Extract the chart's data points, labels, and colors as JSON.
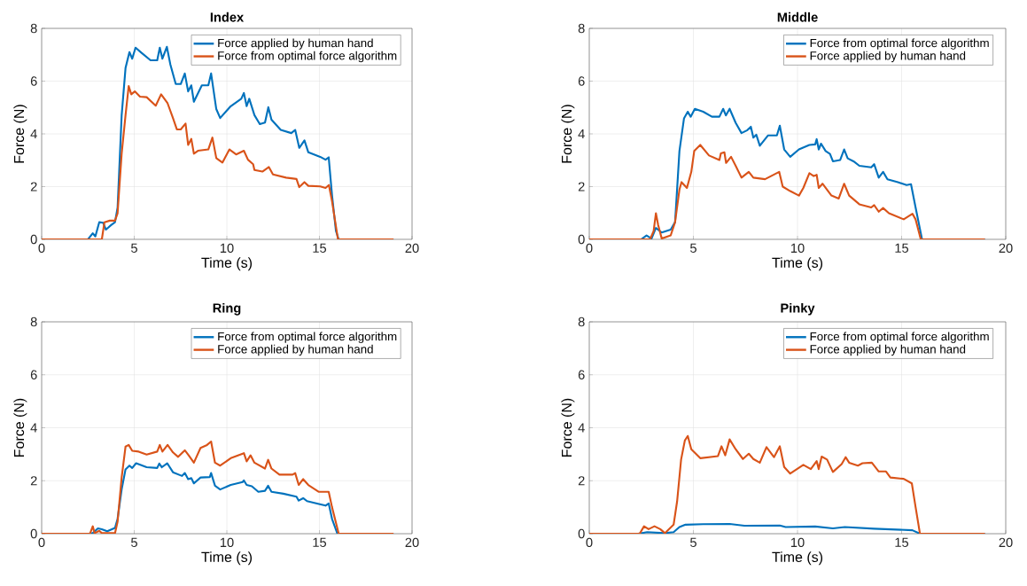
{
  "chart_data": [
    {
      "type": "line",
      "title": "Index",
      "xlabel": "Time (s)",
      "ylabel": "Force (N)",
      "xlim": [
        0,
        20
      ],
      "xticks": [
        0,
        5,
        10,
        15,
        20
      ],
      "ylim": [
        0,
        8
      ],
      "yticks": [
        0,
        2,
        4,
        6,
        8
      ],
      "grid": true,
      "legend": "top right",
      "series": [
        {
          "name": "Force applied by human hand",
          "color": "#0072bd",
          "x": [
            0,
            2.5,
            2.76,
            2.9,
            3.11,
            3.32,
            3.47,
            3.75,
            3.96,
            4.1,
            4.32,
            4.53,
            4.74,
            4.89,
            5.07,
            5.38,
            5.88,
            6.24,
            6.38,
            6.52,
            6.76,
            6.95,
            7.24,
            7.51,
            7.73,
            7.91,
            8.08,
            8.22,
            8.65,
            9.0,
            9.15,
            9.43,
            9.64,
            10.21,
            10.78,
            10.92,
            11.07,
            11.21,
            11.49,
            11.78,
            12.06,
            12.24,
            12.41,
            12.91,
            13.48,
            13.69,
            13.91,
            14.19,
            14.4,
            15.04,
            15.33,
            15.5,
            15.68,
            15.89,
            16.04,
            19
          ],
          "values": [
            0,
            0,
            0.23,
            0.11,
            0.65,
            0.63,
            0.37,
            0.54,
            0.65,
            1.2,
            4.7,
            6.5,
            7.1,
            6.85,
            7.27,
            7.08,
            6.79,
            6.79,
            7.27,
            6.85,
            7.3,
            6.63,
            5.89,
            5.89,
            6.29,
            5.61,
            5.84,
            5.22,
            5.84,
            5.84,
            6.29,
            4.94,
            4.6,
            5.05,
            5.33,
            5.55,
            5.05,
            5.33,
            4.71,
            4.37,
            4.43,
            5.01,
            4.54,
            4.15,
            4.03,
            4.15,
            3.47,
            3.75,
            3.3,
            3.13,
            3.02,
            3.11,
            1.67,
            0.32,
            0,
            0
          ]
        },
        {
          "name": "Force from optimal force algorithm",
          "color": "#d95319",
          "x": [
            0,
            3.25,
            3.39,
            3.68,
            3.96,
            4.1,
            4.32,
            4.53,
            4.7,
            4.84,
            5.03,
            5.31,
            5.67,
            6.16,
            6.45,
            6.8,
            7.09,
            7.3,
            7.51,
            7.77,
            7.91,
            8.08,
            8.22,
            8.44,
            9.0,
            9.22,
            9.43,
            9.76,
            10.14,
            10.5,
            10.92,
            11.14,
            11.42,
            11.49,
            11.92,
            12.27,
            12.49,
            13.2,
            13.76,
            13.91,
            14.19,
            14.4,
            15.04,
            15.33,
            15.51,
            15.68,
            16.0,
            19
          ],
          "values": [
            0,
            0,
            0.65,
            0.71,
            0.71,
            0.99,
            3.25,
            4.71,
            5.81,
            5.5,
            5.61,
            5.41,
            5.39,
            5.07,
            5.5,
            5.16,
            4.6,
            4.17,
            4.17,
            4.39,
            3.58,
            3.81,
            3.25,
            3.36,
            3.41,
            3.86,
            3.08,
            2.91,
            3.41,
            3.22,
            3.36,
            3.02,
            2.85,
            2.63,
            2.57,
            2.74,
            2.46,
            2.34,
            2.29,
            1.98,
            2.17,
            2.03,
            2.01,
            1.95,
            2.06,
            1.44,
            0,
            0
          ]
        }
      ]
    },
    {
      "type": "line",
      "title": "Middle",
      "xlabel": "Time (s)",
      "ylabel": "Force (N)",
      "xlim": [
        0,
        20
      ],
      "xticks": [
        0,
        5,
        10,
        15,
        20
      ],
      "ylim": [
        0,
        8
      ],
      "yticks": [
        0,
        2,
        4,
        6,
        8
      ],
      "grid": true,
      "legend": "top right",
      "series": [
        {
          "name": "Force from optimal force algorithm",
          "color": "#0072bd",
          "x": [
            0,
            2.49,
            2.75,
            2.99,
            3.2,
            3.48,
            3.91,
            4.12,
            4.33,
            4.55,
            4.73,
            4.87,
            5.07,
            5.47,
            5.89,
            6.25,
            6.43,
            6.56,
            6.74,
            7.03,
            7.31,
            7.59,
            7.76,
            7.88,
            8.02,
            8.19,
            8.58,
            9.01,
            9.15,
            9.36,
            9.65,
            10.07,
            10.57,
            10.85,
            10.92,
            11.02,
            11.13,
            11.35,
            11.56,
            11.7,
            12.05,
            12.24,
            12.41,
            12.69,
            12.97,
            13.54,
            13.68,
            13.9,
            14.11,
            14.32,
            14.82,
            15.24,
            15.45,
            15.67,
            15.98,
            19
          ],
          "values": [
            0,
            0,
            0.15,
            0.03,
            0.43,
            0.26,
            0.37,
            0.65,
            3.35,
            4.59,
            4.84,
            4.65,
            4.95,
            4.84,
            4.65,
            4.65,
            4.95,
            4.7,
            4.95,
            4.42,
            4.03,
            4.14,
            4.27,
            3.86,
            3.97,
            3.55,
            3.94,
            3.94,
            4.31,
            3.41,
            3.13,
            3.41,
            3.58,
            3.6,
            3.8,
            3.41,
            3.63,
            3.35,
            3.24,
            2.96,
            3.01,
            3.41,
            3.07,
            2.96,
            2.79,
            2.73,
            2.85,
            2.34,
            2.56,
            2.28,
            2.17,
            2.06,
            2.09,
            1.21,
            0,
            0
          ]
        },
        {
          "name": "Force applied by human hand",
          "color": "#d95319",
          "x": [
            0,
            2.92,
            3.09,
            3.2,
            3.31,
            3.48,
            3.91,
            4.12,
            4.33,
            4.43,
            4.69,
            4.9,
            5.04,
            5.33,
            5.75,
            6.25,
            6.32,
            6.49,
            6.57,
            6.81,
            7.03,
            7.31,
            7.66,
            7.88,
            8.44,
            9.12,
            9.29,
            9.65,
            10.07,
            10.28,
            10.57,
            10.78,
            10.92,
            11.02,
            11.2,
            11.63,
            11.98,
            12.24,
            12.48,
            12.97,
            13.54,
            13.68,
            13.9,
            14.11,
            14.39,
            15.1,
            15.52,
            15.67,
            15.92,
            19
          ],
          "values": [
            0,
            0,
            0.31,
            0.99,
            0.54,
            0.03,
            0.15,
            0.65,
            1.89,
            2.17,
            1.95,
            2.56,
            3.35,
            3.58,
            3.18,
            3.01,
            3.26,
            3.3,
            2.9,
            3.13,
            2.79,
            2.34,
            2.56,
            2.34,
            2.28,
            2.56,
            2.0,
            1.83,
            1.66,
            1.95,
            2.51,
            2.4,
            2.45,
            1.95,
            2.11,
            1.66,
            1.55,
            2.11,
            1.66,
            1.33,
            1.21,
            1.3,
            1.05,
            1.19,
            0.99,
            0.76,
            0.97,
            0.76,
            0,
            0
          ]
        }
      ]
    },
    {
      "type": "line",
      "title": "Ring",
      "xlabel": "Time (s)",
      "ylabel": "Force (N)",
      "xlim": [
        0,
        20
      ],
      "xticks": [
        0,
        5,
        10,
        15,
        20
      ],
      "ylim": [
        0,
        8
      ],
      "yticks": [
        0,
        2,
        4,
        6,
        8
      ],
      "grid": true,
      "legend": "top right",
      "series": [
        {
          "name": "Force from optimal force algorithm",
          "color": "#0072bd",
          "x": [
            0,
            2.54,
            2.76,
            3.04,
            3.25,
            3.54,
            3.96,
            4.1,
            4.32,
            4.53,
            4.74,
            4.89,
            5.1,
            5.67,
            6.24,
            6.35,
            6.49,
            6.78,
            7.09,
            7.58,
            7.73,
            7.91,
            8.08,
            8.22,
            8.58,
            9.08,
            9.15,
            9.36,
            9.64,
            10.21,
            10.85,
            10.92,
            11.07,
            11.35,
            11.7,
            12.06,
            12.23,
            12.41,
            13.05,
            13.76,
            13.88,
            14.12,
            14.33,
            14.97,
            15.33,
            15.5,
            15.68,
            15.97,
            19
          ],
          "values": [
            0,
            0,
            0.02,
            0.2,
            0.17,
            0.09,
            0.22,
            0.56,
            1.67,
            2.43,
            2.57,
            2.48,
            2.66,
            2.51,
            2.48,
            2.65,
            2.51,
            2.66,
            2.32,
            2.18,
            2.29,
            2.06,
            2.1,
            1.9,
            2.12,
            2.14,
            2.29,
            1.81,
            1.67,
            1.84,
            1.95,
            2.01,
            1.84,
            1.79,
            1.58,
            1.62,
            1.81,
            1.58,
            1.51,
            1.4,
            1.25,
            1.34,
            1.23,
            1.12,
            1.06,
            1.14,
            0.56,
            0,
            0
          ]
        },
        {
          "name": "Force applied by human hand",
          "color": "#d95319",
          "x": [
            0,
            2.61,
            2.76,
            2.86,
            3.11,
            3.25,
            3.96,
            4.1,
            4.32,
            4.53,
            4.7,
            4.89,
            5.24,
            5.67,
            6.24,
            6.38,
            6.52,
            6.8,
            7.09,
            7.37,
            7.73,
            7.94,
            8.22,
            8.58,
            8.93,
            9.15,
            9.36,
            9.64,
            10.21,
            10.92,
            11.07,
            11.28,
            11.49,
            12.06,
            12.23,
            12.41,
            12.84,
            13.55,
            13.69,
            13.88,
            14.12,
            14.4,
            14.97,
            15.5,
            15.68,
            16.04,
            19
          ],
          "values": [
            0,
            0,
            0.28,
            0.02,
            0.11,
            0.02,
            0.02,
            0.45,
            2.12,
            3.29,
            3.35,
            3.13,
            3.1,
            2.99,
            3.1,
            3.35,
            3.1,
            3.35,
            3.07,
            2.9,
            3.15,
            2.96,
            2.68,
            3.24,
            3.35,
            3.48,
            2.68,
            2.57,
            2.85,
            3.04,
            2.73,
            2.96,
            2.68,
            2.46,
            2.79,
            2.46,
            2.23,
            2.23,
            2.29,
            1.84,
            2.06,
            1.84,
            1.58,
            1.58,
            1.0,
            0,
            0
          ]
        }
      ]
    },
    {
      "type": "line",
      "title": "Pinky",
      "xlabel": "Time (s)",
      "ylabel": "Force (N)",
      "xlim": [
        0,
        20
      ],
      "xticks": [
        0,
        5,
        10,
        15,
        20
      ],
      "ylim": [
        0,
        8
      ],
      "yticks": [
        0,
        2,
        4,
        6,
        8
      ],
      "grid": true,
      "legend": "top right",
      "series": [
        {
          "name": "Force from optimal force algorithm",
          "color": "#0072bd",
          "x": [
            0,
            2.35,
            2.78,
            3.63,
            4.05,
            4.33,
            4.62,
            5.47,
            6.74,
            7.45,
            9.15,
            9.43,
            10.85,
            11.7,
            12.27,
            13.68,
            15.52,
            15.88,
            19
          ],
          "values": [
            0,
            0,
            0.06,
            0.02,
            0.06,
            0.25,
            0.34,
            0.36,
            0.37,
            0.3,
            0.31,
            0.25,
            0.27,
            0.2,
            0.25,
            0.19,
            0.13,
            0,
            0
          ]
        },
        {
          "name": "Force applied by human hand",
          "color": "#d95319",
          "x": [
            0,
            2.42,
            2.63,
            2.85,
            3.13,
            3.41,
            3.63,
            4.05,
            4.22,
            4.41,
            4.59,
            4.73,
            4.9,
            5.33,
            6.18,
            6.35,
            6.53,
            6.74,
            7.03,
            7.38,
            7.66,
            7.88,
            8.19,
            8.51,
            8.87,
            9.15,
            9.36,
            9.65,
            10.28,
            10.64,
            10.92,
            11.02,
            11.16,
            11.42,
            11.7,
            12.12,
            12.31,
            12.48,
            12.9,
            13.12,
            13.57,
            13.9,
            14.25,
            14.46,
            15.1,
            15.49,
            15.67,
            15.88,
            19
          ],
          "values": [
            0,
            0,
            0.28,
            0.17,
            0.28,
            0.17,
            0.02,
            0.34,
            1.23,
            2.8,
            3.52,
            3.69,
            3.19,
            2.85,
            2.93,
            3.3,
            2.96,
            3.56,
            3.19,
            2.82,
            3.02,
            2.82,
            2.68,
            3.27,
            2.89,
            3.3,
            2.52,
            2.27,
            2.6,
            2.44,
            2.74,
            2.44,
            2.91,
            2.8,
            2.33,
            2.63,
            2.89,
            2.68,
            2.57,
            2.66,
            2.68,
            2.35,
            2.35,
            2.12,
            2.07,
            1.9,
            1.01,
            0,
            0
          ]
        }
      ]
    }
  ]
}
